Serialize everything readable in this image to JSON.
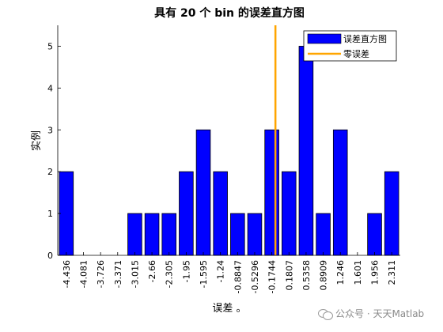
{
  "chart_data": {
    "type": "bar",
    "title": "具有 20 个 bin 的误差直方图",
    "xlabel": "误差 。",
    "ylabel": "实例",
    "categories": [
      "-4.436",
      "-4.081",
      "-3.726",
      "-3.371",
      "-3.015",
      "-2.66",
      "-2.305",
      "-1.95",
      "-1.595",
      "-1.24",
      "-0.8847",
      "-0.5296",
      "-0.1744",
      "0.1807",
      "0.5358",
      "0.8909",
      "1.246",
      "1.601",
      "1.956",
      "2.311"
    ],
    "values": [
      2,
      0,
      0,
      0,
      1,
      1,
      1,
      2,
      3,
      2,
      1,
      1,
      3,
      2,
      5,
      1,
      3,
      0,
      1,
      2
    ],
    "ylim": [
      0,
      5.5
    ],
    "yticks": [
      0,
      1,
      2,
      3,
      4,
      5
    ],
    "zero_error_x": -0.1,
    "grid": false,
    "legend": {
      "placement": "top-right",
      "entries": [
        {
          "label": "误差直方图",
          "color": "#0000ff"
        },
        {
          "label": "零误差",
          "color": "#ffa500"
        }
      ]
    },
    "colors": {
      "bar": "#0000ff",
      "zero_line": "#ffa500"
    }
  },
  "watermark": {
    "text": "公众号 · 天天Matlab"
  }
}
